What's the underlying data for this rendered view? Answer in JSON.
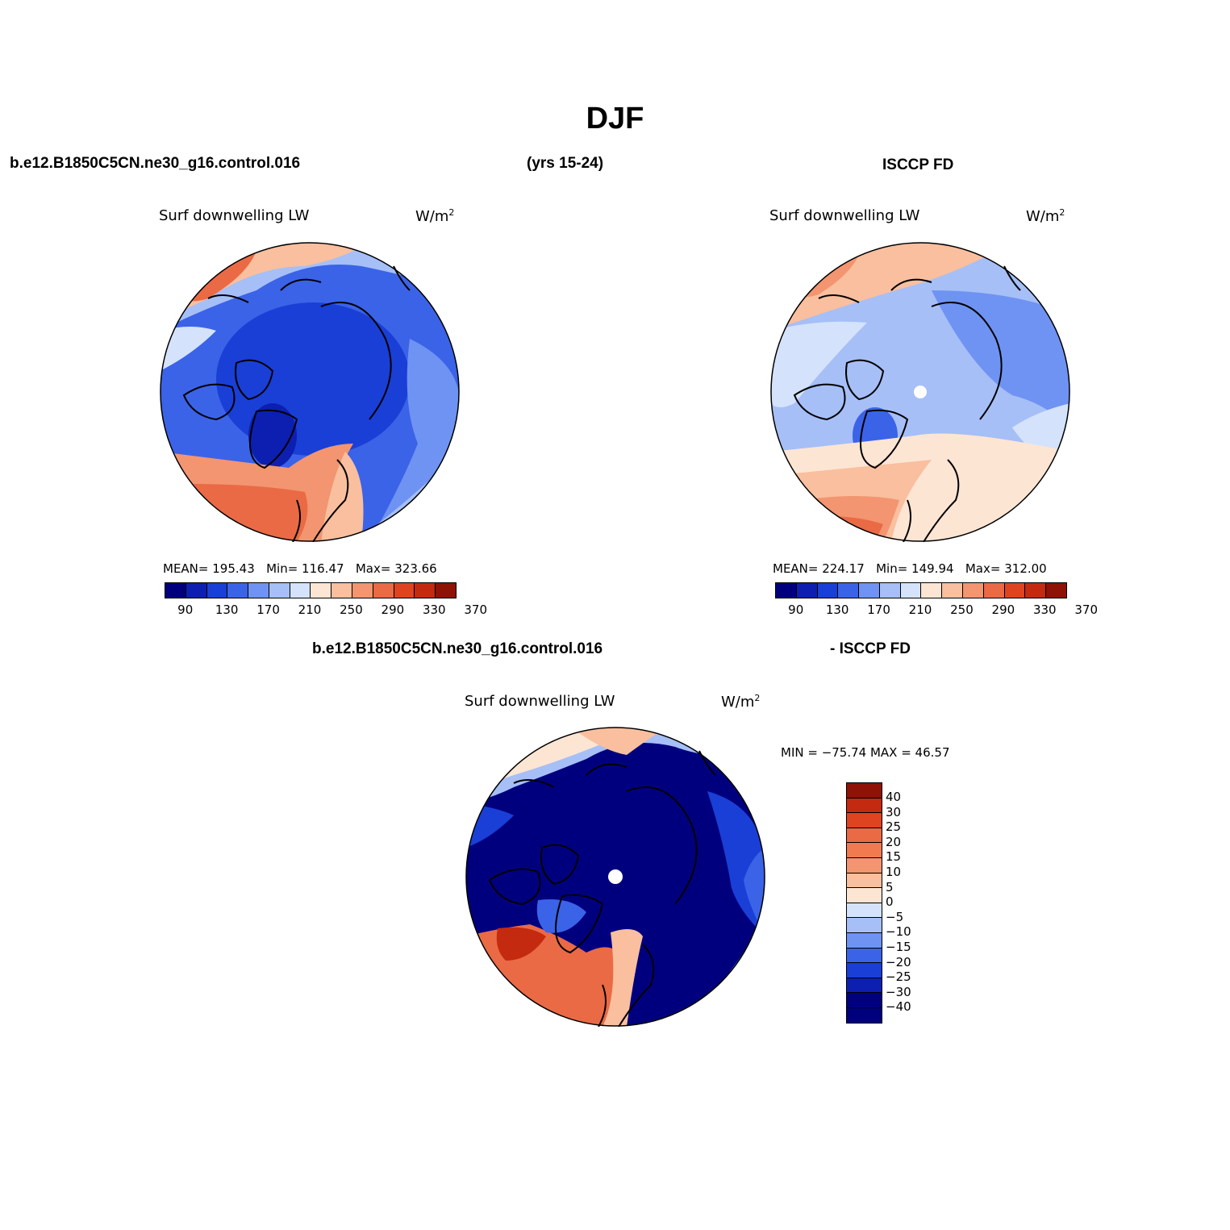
{
  "figure": {
    "title": "DJF",
    "case_name": "b.e12.B1850C5CN.ne30_g16.control.016",
    "years": "(yrs 15-24)",
    "obs_name": "ISCCP FD",
    "diff_case_name": "b.e12.B1850C5CN.ne30_g16.control.016",
    "diff_obs_name": "- ISCCP FD"
  },
  "panels": {
    "model": {
      "variable": "Surf downwelling LW",
      "units_base": "W/m",
      "units_exp": "2",
      "mean_label": "MEAN=",
      "mean": "195.43",
      "min_label": "Min=",
      "min": "116.47",
      "max_label": "Max=",
      "max": "323.66"
    },
    "obs": {
      "variable": "Surf downwelling LW",
      "units_base": "W/m",
      "units_exp": "2",
      "mean_label": "MEAN=",
      "mean": "224.17",
      "min_label": "Min=",
      "min": "149.94",
      "max_label": "Max=",
      "max": "312.00"
    },
    "diff": {
      "variable": "Surf downwelling LW",
      "units_base": "W/m",
      "units_exp": "2",
      "minmax_text": "MIN = −75.74 MAX =  46.57"
    }
  },
  "colorbar_abs": {
    "ticks": [
      "90",
      "130",
      "170",
      "210",
      "250",
      "290",
      "330",
      "370"
    ],
    "colors": [
      "#00007f",
      "#0d1fb0",
      "#1a3fd6",
      "#3b63e8",
      "#6f93f2",
      "#a6bff7",
      "#d4e3fb",
      "#fde5d4",
      "#f9bf9e",
      "#f29570",
      "#ea6a45",
      "#de4420",
      "#c42a10",
      "#8e1206"
    ]
  },
  "colorbar_diff": {
    "ticks": [
      "40",
      "30",
      "25",
      "20",
      "15",
      "10",
      "5",
      "0",
      "−5",
      "−10",
      "−15",
      "−20",
      "−25",
      "−30",
      "−40"
    ],
    "colors": [
      "#8e1206",
      "#c42a10",
      "#de4420",
      "#ea6a45",
      "#f27a50",
      "#f29570",
      "#f9bf9e",
      "#fde5d4",
      "#d4e3fb",
      "#a6bff7",
      "#6f93f2",
      "#3b63e8",
      "#1a3fd6",
      "#0d1fb0",
      "#00007f",
      "#00007f"
    ]
  }
}
